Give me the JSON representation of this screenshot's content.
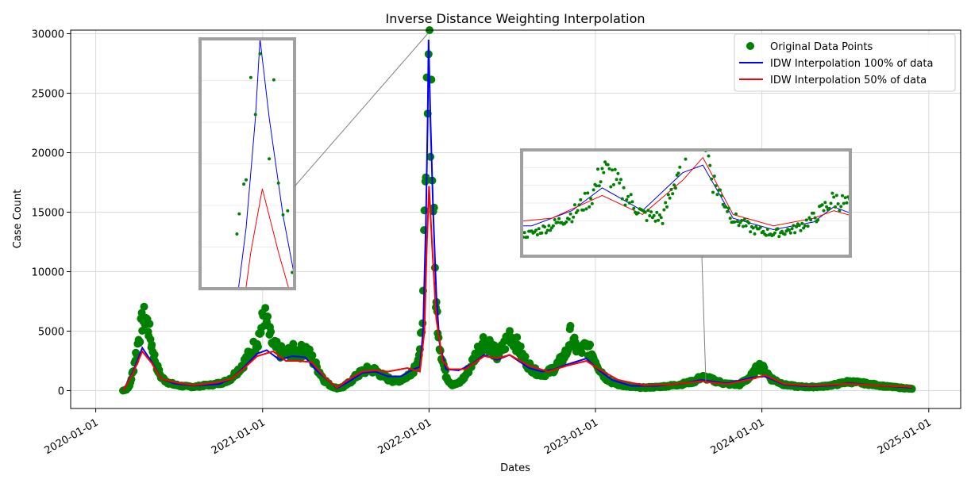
{
  "chart_data": {
    "type": "scatter",
    "title": "Inverse Distance Weighting Interpolation",
    "xlabel": "Dates",
    "ylabel": "Case Count",
    "x_ticks": [
      "2020-01-01",
      "2021-01-01",
      "2022-01-01",
      "2023-01-01",
      "2024-01-01",
      "2025-01-01"
    ],
    "y_ticks": [
      "0",
      "5000",
      "10000",
      "15000",
      "20000",
      "25000",
      "30000"
    ],
    "xlim": [
      "2019-11-07",
      "2025-03-12"
    ],
    "ylim": [
      -1500,
      30300
    ],
    "grid": true,
    "legend_position": "top-right",
    "series": [
      {
        "name": "Original Data Points",
        "kind": "scatter",
        "color": "#008000",
        "points": [
          [
            "2020-03-01",
            0
          ],
          [
            "2020-03-08",
            80
          ],
          [
            "2020-03-15",
            400
          ],
          [
            "2020-03-22",
            1500
          ],
          [
            "2020-03-29",
            3000
          ],
          [
            "2020-04-05",
            4500
          ],
          [
            "2020-04-12",
            5800
          ],
          [
            "2020-04-19",
            6300
          ],
          [
            "2020-04-26",
            5200
          ],
          [
            "2020-05-03",
            3800
          ],
          [
            "2020-05-10",
            2600
          ],
          [
            "2020-05-17",
            1700
          ],
          [
            "2020-05-24",
            1100
          ],
          [
            "2020-06-07",
            700
          ],
          [
            "2020-06-21",
            500
          ],
          [
            "2020-07-05",
            400
          ],
          [
            "2020-07-19",
            350
          ],
          [
            "2020-08-02",
            320
          ],
          [
            "2020-08-16",
            380
          ],
          [
            "2020-08-30",
            450
          ],
          [
            "2020-09-13",
            500
          ],
          [
            "2020-09-27",
            600
          ],
          [
            "2020-10-11",
            750
          ],
          [
            "2020-10-25",
            1100
          ],
          [
            "2020-11-08",
            1700
          ],
          [
            "2020-11-22",
            2400
          ],
          [
            "2020-12-06",
            3200
          ],
          [
            "2020-12-20",
            4200
          ],
          [
            "2020-12-29",
            5200
          ],
          [
            "2021-01-03",
            6500
          ],
          [
            "2021-01-10",
            5800
          ],
          [
            "2021-01-17",
            4600
          ],
          [
            "2021-01-24",
            3800
          ],
          [
            "2021-02-07",
            3300
          ],
          [
            "2021-02-21",
            3000
          ],
          [
            "2021-03-07",
            3400
          ],
          [
            "2021-03-21",
            3100
          ],
          [
            "2021-04-04",
            3600
          ],
          [
            "2021-04-18",
            2800
          ],
          [
            "2021-05-02",
            1800
          ],
          [
            "2021-05-16",
            900
          ],
          [
            "2021-05-30",
            400
          ],
          [
            "2021-06-13",
            200
          ],
          [
            "2021-06-27",
            300
          ],
          [
            "2021-07-11",
            700
          ],
          [
            "2021-07-25",
            1200
          ],
          [
            "2021-08-08",
            1600
          ],
          [
            "2021-08-22",
            1800
          ],
          [
            "2021-09-05",
            1700
          ],
          [
            "2021-09-19",
            1300
          ],
          [
            "2021-10-03",
            1000
          ],
          [
            "2021-10-17",
            800
          ],
          [
            "2021-10-31",
            900
          ],
          [
            "2021-11-14",
            1200
          ],
          [
            "2021-11-28",
            1800
          ],
          [
            "2021-12-12",
            3000
          ],
          [
            "2021-12-19",
            7500
          ],
          [
            "2021-12-22",
            13500
          ],
          [
            "2021-12-25",
            17500
          ],
          [
            "2021-12-27",
            23000
          ],
          [
            "2021-12-29",
            28000
          ],
          [
            "2021-12-31",
            30300
          ],
          [
            "2022-01-02",
            29200
          ],
          [
            "2022-01-04",
            23200
          ],
          [
            "2022-01-06",
            25000
          ],
          [
            "2022-01-08",
            18500
          ],
          [
            "2022-01-10",
            16200
          ],
          [
            "2022-01-12",
            13300
          ],
          [
            "2022-01-14",
            10000
          ],
          [
            "2022-01-17",
            7000
          ],
          [
            "2022-01-20",
            5800
          ],
          [
            "2022-01-24",
            4000
          ],
          [
            "2022-01-31",
            2500
          ],
          [
            "2022-02-07",
            1300
          ],
          [
            "2022-02-14",
            800
          ],
          [
            "2022-02-21",
            500
          ],
          [
            "2022-03-07",
            600
          ],
          [
            "2022-03-21",
            1200
          ],
          [
            "2022-04-04",
            2200
          ],
          [
            "2022-04-18",
            3400
          ],
          [
            "2022-05-02",
            4300
          ],
          [
            "2022-05-16",
            3800
          ],
          [
            "2022-05-30",
            2900
          ],
          [
            "2022-06-13",
            3600
          ],
          [
            "2022-06-27",
            4800
          ],
          [
            "2022-07-11",
            4000
          ],
          [
            "2022-07-25",
            2900
          ],
          [
            "2022-08-08",
            2100
          ],
          [
            "2022-08-22",
            1600
          ],
          [
            "2022-09-05",
            1400
          ],
          [
            "2022-09-19",
            1500
          ],
          [
            "2022-10-03",
            1900
          ],
          [
            "2022-10-17",
            2500
          ],
          [
            "2022-10-31",
            3300
          ],
          [
            "2022-11-07",
            4700
          ],
          [
            "2022-11-14",
            3900
          ],
          [
            "2022-11-28",
            3300
          ],
          [
            "2022-12-12",
            3700
          ],
          [
            "2022-12-26",
            3000
          ],
          [
            "2023-01-09",
            1900
          ],
          [
            "2023-01-23",
            1100
          ],
          [
            "2023-02-06",
            700
          ],
          [
            "2023-02-20",
            500
          ],
          [
            "2023-03-20",
            300
          ],
          [
            "2023-04-17",
            250
          ],
          [
            "2023-05-15",
            300
          ],
          [
            "2023-06-12",
            400
          ],
          [
            "2023-07-10",
            550
          ],
          [
            "2023-08-07",
            800
          ],
          [
            "2023-08-21",
            1150
          ],
          [
            "2023-09-04",
            1050
          ],
          [
            "2023-09-18",
            850
          ],
          [
            "2023-10-16",
            550
          ],
          [
            "2023-11-13",
            500
          ],
          [
            "2023-12-11",
            1300
          ],
          [
            "2023-12-25",
            2100
          ],
          [
            "2024-01-08",
            1700
          ],
          [
            "2024-01-22",
            1000
          ],
          [
            "2024-02-19",
            500
          ],
          [
            "2024-03-18",
            350
          ],
          [
            "2024-04-15",
            300
          ],
          [
            "2024-05-13",
            350
          ],
          [
            "2024-06-10",
            500
          ],
          [
            "2024-07-08",
            750
          ],
          [
            "2024-08-05",
            650
          ],
          [
            "2024-09-02",
            500
          ],
          [
            "2024-09-30",
            350
          ],
          [
            "2024-10-28",
            250
          ],
          [
            "2024-11-25",
            150
          ]
        ]
      },
      {
        "name": "IDW Interpolation 100% of data",
        "kind": "line",
        "color": "#0000ff",
        "points": [
          [
            "2020-03-01",
            0
          ],
          [
            "2020-03-22",
            1500
          ],
          [
            "2020-04-12",
            3600
          ],
          [
            "2020-05-03",
            2400
          ],
          [
            "2020-05-24",
            1000
          ],
          [
            "2020-06-21",
            600
          ],
          [
            "2020-08-02",
            420
          ],
          [
            "2020-09-27",
            550
          ],
          [
            "2020-10-25",
            1000
          ],
          [
            "2020-11-22",
            2000
          ],
          [
            "2020-12-20",
            3100
          ],
          [
            "2021-01-10",
            3400
          ],
          [
            "2021-02-07",
            2600
          ],
          [
            "2021-03-07",
            2900
          ],
          [
            "2021-04-04",
            2800
          ],
          [
            "2021-05-02",
            1600
          ],
          [
            "2021-05-30",
            700
          ],
          [
            "2021-06-13",
            200
          ],
          [
            "2021-07-11",
            800
          ],
          [
            "2021-08-08",
            1500
          ],
          [
            "2021-09-05",
            1600
          ],
          [
            "2021-10-03",
            1200
          ],
          [
            "2021-10-31",
            1200
          ],
          [
            "2021-11-28",
            1800
          ],
          [
            "2021-12-12",
            2000
          ],
          [
            "2021-12-19",
            5000
          ],
          [
            "2021-12-25",
            14000
          ],
          [
            "2021-12-29",
            23000
          ],
          [
            "2021-12-31",
            29500
          ],
          [
            "2022-01-04",
            23000
          ],
          [
            "2022-01-10",
            15000
          ],
          [
            "2022-01-17",
            8000
          ],
          [
            "2022-01-24",
            4000
          ],
          [
            "2022-02-07",
            1800
          ],
          [
            "2022-03-07",
            1700
          ],
          [
            "2022-04-04",
            2200
          ],
          [
            "2022-05-02",
            3000
          ],
          [
            "2022-05-30",
            2600
          ],
          [
            "2022-06-27",
            3000
          ],
          [
            "2022-08-08",
            1900
          ],
          [
            "2022-09-05",
            1600
          ],
          [
            "2022-10-03",
            1800
          ],
          [
            "2022-10-31",
            2200
          ],
          [
            "2022-12-12",
            2700
          ],
          [
            "2023-01-09",
            1700
          ],
          [
            "2023-02-06",
            900
          ],
          [
            "2023-03-20",
            400
          ],
          [
            "2023-05-15",
            400
          ],
          [
            "2023-07-10",
            600
          ],
          [
            "2023-08-21",
            900
          ],
          [
            "2023-10-16",
            600
          ],
          [
            "2023-12-11",
            1100
          ],
          [
            "2024-01-08",
            1200
          ],
          [
            "2024-02-19",
            500
          ],
          [
            "2024-04-15",
            350
          ],
          [
            "2024-06-10",
            450
          ],
          [
            "2024-07-08",
            650
          ],
          [
            "2024-09-02",
            450
          ],
          [
            "2024-11-25",
            250
          ]
        ]
      },
      {
        "name": "IDW Interpolation 50% of data",
        "kind": "line",
        "color": "#ff0000",
        "points": [
          [
            "2020-03-01",
            0
          ],
          [
            "2020-03-22",
            1400
          ],
          [
            "2020-04-12",
            3300
          ],
          [
            "2020-05-03",
            2300
          ],
          [
            "2020-05-24",
            1000
          ],
          [
            "2020-06-21",
            700
          ],
          [
            "2020-08-02",
            450
          ],
          [
            "2020-09-27",
            700
          ],
          [
            "2020-10-25",
            1000
          ],
          [
            "2020-11-22",
            1900
          ],
          [
            "2020-12-20",
            2900
          ],
          [
            "2021-01-24",
            3300
          ],
          [
            "2021-02-21",
            2500
          ],
          [
            "2021-03-21",
            2500
          ],
          [
            "2021-04-18",
            2400
          ],
          [
            "2021-05-16",
            1200
          ],
          [
            "2021-06-13",
            250
          ],
          [
            "2021-07-11",
            1000
          ],
          [
            "2021-08-08",
            1600
          ],
          [
            "2021-09-05",
            1700
          ],
          [
            "2021-10-03",
            1600
          ],
          [
            "2021-11-14",
            1900
          ],
          [
            "2021-12-12",
            1600
          ],
          [
            "2021-12-22",
            5000
          ],
          [
            "2021-12-27",
            12000
          ],
          [
            "2022-01-01",
            17200
          ],
          [
            "2022-01-08",
            12000
          ],
          [
            "2022-01-17",
            6000
          ],
          [
            "2022-01-31",
            2500
          ],
          [
            "2022-02-14",
            1800
          ],
          [
            "2022-03-21",
            1800
          ],
          [
            "2022-05-02",
            2900
          ],
          [
            "2022-05-30",
            2700
          ],
          [
            "2022-06-27",
            3000
          ],
          [
            "2022-08-08",
            2100
          ],
          [
            "2022-09-19",
            1600
          ],
          [
            "2022-10-31",
            2100
          ],
          [
            "2022-12-12",
            2500
          ],
          [
            "2023-01-09",
            1800
          ],
          [
            "2023-02-20",
            900
          ],
          [
            "2023-04-17",
            450
          ],
          [
            "2023-06-12",
            500
          ],
          [
            "2023-08-21",
            800
          ],
          [
            "2023-10-16",
            550
          ],
          [
            "2023-12-11",
            1000
          ],
          [
            "2024-01-08",
            1300
          ],
          [
            "2024-02-19",
            550
          ],
          [
            "2024-04-15",
            400
          ],
          [
            "2024-06-10",
            500
          ],
          [
            "2024-07-08",
            600
          ],
          [
            "2024-09-02",
            450
          ],
          [
            "2024-11-25",
            300
          ]
        ]
      }
    ],
    "insets": [
      {
        "name": "zoom-inset-omicron-peak",
        "xlim": [
          "2021-12-05",
          "2022-01-15"
        ],
        "ylim": [
          9000,
          29500
        ]
      },
      {
        "name": "zoom-inset-2023",
        "xlim": [
          "2023-05-01",
          "2024-07-31"
        ],
        "ylim": [
          0,
          1400
        ]
      }
    ]
  }
}
